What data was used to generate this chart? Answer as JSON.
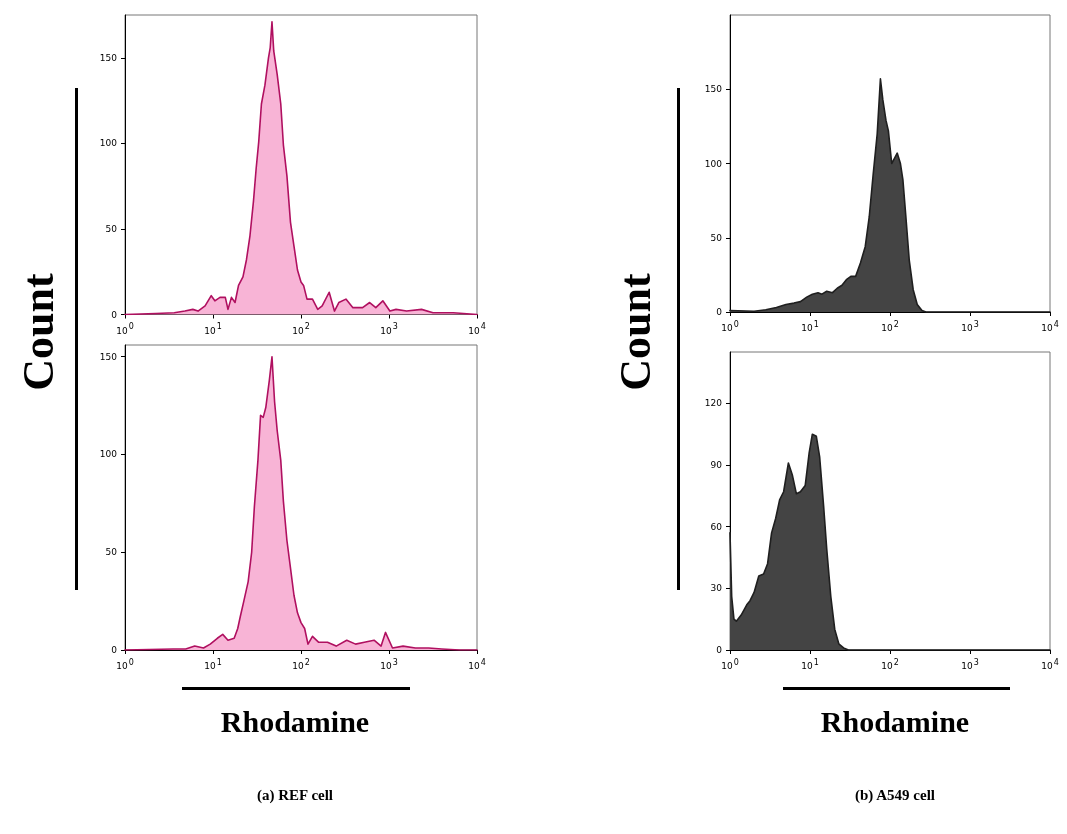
{
  "chart_data": [
    {
      "type": "area",
      "ylabel": "Count",
      "log": "x",
      "color": "#f8b4d6",
      "x": [
        1,
        2.24,
        3.63,
        4.79,
        5.89,
        6.76,
        8.13,
        9.55,
        10.5,
        12.0,
        13.8,
        14.8,
        16.2,
        17.8,
        19.5,
        21.9,
        24.0,
        26.3,
        28.8,
        30.9,
        33.1,
        35.5,
        38.9,
        42.7,
        44.7,
        46.8,
        49.0,
        53.7,
        58.9,
        63.1,
        69.2,
        75.9,
        83.2,
        91.2,
        100,
        107,
        117,
        135,
        155,
        174,
        209,
        240,
        269,
        324,
        389,
        501,
        603,
        708,
        851,
        1023,
        1202,
        1585,
        2344,
        3162,
        5370,
        10000
      ],
      "values": [
        0,
        0.6,
        1,
        2,
        3,
        2,
        5,
        11,
        8,
        10,
        10,
        3,
        10,
        7,
        17,
        22,
        32,
        46,
        66,
        85,
        101,
        123,
        134,
        150,
        156,
        171,
        154,
        140,
        123,
        99,
        81,
        54,
        40,
        26,
        19,
        17,
        9,
        9,
        3,
        5,
        13,
        2,
        7,
        9,
        4,
        4,
        7,
        4,
        8,
        2,
        3,
        2,
        3,
        1,
        1,
        0
      ],
      "xlim": [
        1,
        10000
      ],
      "xticks": [
        {
          "value": 1,
          "label": "10$^{0}$"
        },
        {
          "value": 10,
          "label": "10$^{1}$"
        },
        {
          "value": 100,
          "label": "10$^{2}$"
        },
        {
          "value": 1000,
          "label": "10$^{3}$"
        },
        {
          "value": 10000,
          "label": "10$^{4}$"
        }
      ],
      "ylim": [
        0,
        175
      ],
      "yticks": [
        0,
        50,
        100,
        150
      ]
    },
    {
      "type": "area",
      "ylabel": "Count",
      "log": "x",
      "color": "#444444",
      "x": [
        1,
        2.0,
        2.8,
        3.8,
        5.0,
        6.3,
        7.6,
        9.1,
        10.7,
        12.6,
        14.1,
        16.2,
        19.1,
        21.9,
        25.1,
        28.8,
        32.4,
        37.2,
        42.7,
        49.0,
        55.0,
        61.7,
        69.2,
        75.9,
        81.3,
        89.1,
        95.5,
        105,
        115,
        123,
        135,
        145,
        158,
        174,
        195,
        219,
        251,
        282,
        1000,
        10000
      ],
      "values": [
        1,
        0.5,
        1.5,
        3,
        5,
        6,
        7,
        10,
        12,
        13,
        12,
        14,
        13,
        16,
        18,
        22,
        24,
        24,
        33,
        44,
        64,
        93,
        120,
        157,
        143,
        129,
        122,
        100,
        104,
        107,
        100,
        89,
        64,
        35,
        15,
        5,
        1,
        0,
        0,
        0
      ],
      "xlim": [
        1,
        10000
      ],
      "xticks": [
        {
          "value": 1,
          "label": "10$^{0}$"
        },
        {
          "value": 10,
          "label": "10$^{1}$"
        },
        {
          "value": 100,
          "label": "10$^{2}$"
        },
        {
          "value": 1000,
          "label": "10$^{3}$"
        },
        {
          "value": 10000,
          "label": "10$^{4}$"
        }
      ],
      "ylim": [
        0,
        200
      ],
      "yticks": [
        0,
        50,
        100,
        150
      ]
    },
    {
      "type": "area",
      "xlabel": "Rhodamine",
      "annotations": [
        "(a) REF cell"
      ],
      "log": "x",
      "color": "#f8b4d6",
      "x": [
        1,
        3.55,
        4.9,
        6.2,
        7.8,
        9.3,
        11.2,
        12.9,
        14.8,
        17.4,
        19.1,
        20.4,
        22.4,
        25.1,
        27.5,
        29.5,
        32.4,
        34.7,
        37.2,
        39.8,
        43.7,
        46.8,
        50.1,
        53.7,
        58.9,
        63.1,
        69.2,
        75.9,
        83.2,
        91.2,
        100,
        110,
        120,
        135,
        158,
        200,
        251,
        331,
        417,
        525,
        676,
        813,
        912,
        1096,
        1445,
        1995,
        2818,
        3981,
        6310,
        10000
      ],
      "values": [
        0,
        0.5,
        0.5,
        2,
        1,
        3,
        6,
        8,
        5,
        6,
        11,
        17,
        25,
        35,
        50,
        73,
        97,
        120,
        119,
        124,
        138,
        150,
        127,
        112,
        97,
        76,
        56,
        42,
        28,
        19,
        14,
        11,
        3,
        7,
        4,
        4,
        2,
        5,
        3,
        4,
        5,
        2,
        9,
        1,
        2,
        1,
        1,
        0.5,
        0,
        0
      ],
      "xlim": [
        1,
        10000
      ],
      "xticks": [
        {
          "value": 1,
          "label": "10$^{0}$"
        },
        {
          "value": 10,
          "label": "10$^{1}$"
        },
        {
          "value": 100,
          "label": "10$^{2}$"
        },
        {
          "value": 1000,
          "label": "10$^{3}$"
        },
        {
          "value": 10000,
          "label": "10$^{4}$"
        }
      ],
      "ylim": [
        0,
        156
      ],
      "yticks": [
        0,
        50,
        100,
        150
      ]
    },
    {
      "type": "area",
      "xlabel": "Rhodamine",
      "annotations": [
        "(b) A549 cell"
      ],
      "log": "x",
      "color": "#444444",
      "x": [
        1,
        1.05,
        1.12,
        1.2,
        1.38,
        1.62,
        1.78,
        2.0,
        2.29,
        2.63,
        2.95,
        3.31,
        3.72,
        4.17,
        4.68,
        5.37,
        6.03,
        6.76,
        7.59,
        8.71,
        9.77,
        10.7,
        12.0,
        13.2,
        14.8,
        16.2,
        18.2,
        20.4,
        22.9,
        26.3,
        30.2,
        10000
      ],
      "values": [
        57,
        26,
        15,
        14,
        17,
        22,
        24,
        28,
        36,
        37,
        42,
        57,
        64,
        73,
        77,
        91,
        85,
        76,
        77,
        80,
        96,
        105,
        104,
        94,
        70,
        49,
        26,
        10,
        3,
        1,
        0,
        0
      ],
      "xlim": [
        1,
        10000
      ],
      "xticks": [
        {
          "value": 1,
          "label": "10$^{0}$"
        },
        {
          "value": 10,
          "label": "10$^{1}$"
        },
        {
          "value": 100,
          "label": "10$^{2}$"
        },
        {
          "value": 1000,
          "label": "10$^{3}$"
        },
        {
          "value": 10000,
          "label": "10$^{4}$"
        }
      ],
      "ylim": [
        0,
        145
      ],
      "yticks": [
        0,
        30,
        60,
        90,
        120
      ]
    }
  ]
}
